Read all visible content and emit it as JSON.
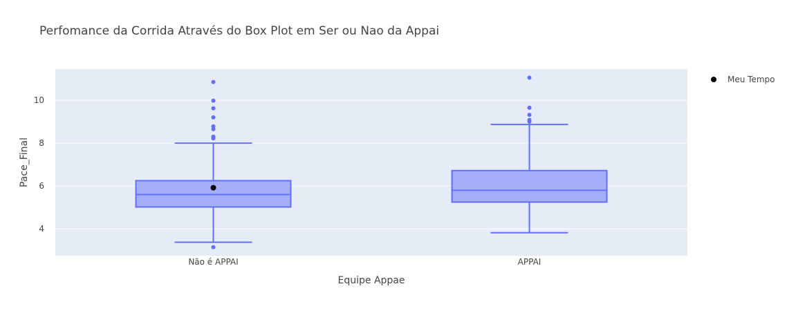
{
  "chart_data": {
    "type": "box",
    "title": "Perfomance da Corrida Através do Box Plot em Ser ou Nao da Appai",
    "xlabel": "Equipe Appae",
    "ylabel": "Pace_Final",
    "ylim": [
      2.75,
      11.45
    ],
    "yticks": [
      4,
      6,
      8,
      10
    ],
    "grid": true,
    "legend_position": "top-right",
    "box_color": "#636efa",
    "box_fill": "rgba(99,110,250,0.5)",
    "plot_bg": "#e5ecf6",
    "categories": [
      "Não é APPAI",
      "APPAI"
    ],
    "boxes": [
      {
        "category": "Não é APPAI",
        "lowerfence": 3.38,
        "q1": 5.02,
        "median": 5.6,
        "q3": 6.25,
        "upperfence": 8.0,
        "outliers": [
          3.15,
          8.22,
          8.3,
          8.65,
          8.78,
          9.2,
          9.62,
          9.98,
          10.85
        ]
      },
      {
        "category": "APPAI",
        "lowerfence": 3.82,
        "q1": 5.25,
        "median": 5.8,
        "q3": 6.72,
        "upperfence": 8.87,
        "outliers": [
          9.0,
          9.08,
          9.32,
          9.65,
          11.05
        ]
      }
    ],
    "markers": [
      {
        "series": "Meu Tempo",
        "category": "Não é APPAI",
        "y": 5.92,
        "color": "#000000"
      }
    ],
    "legend": [
      {
        "name": "Meu Tempo",
        "color": "#000000"
      }
    ]
  }
}
